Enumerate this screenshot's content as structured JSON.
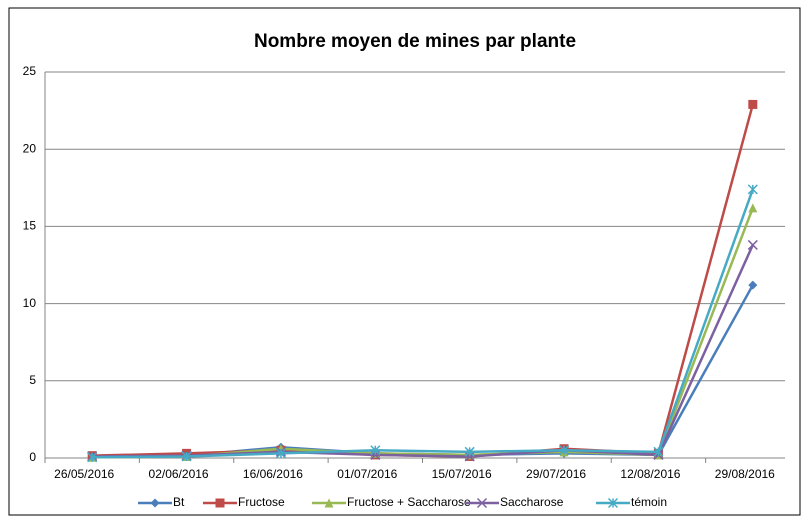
{
  "chart_data": {
    "type": "line",
    "title": "Nombre moyen de mines par plante",
    "categories": [
      "26/05/2016",
      "02/06/2016",
      "16/06/2016",
      "01/07/2016",
      "15/07/2016",
      "29/07/2016",
      "12/08/2016",
      "29/08/2016"
    ],
    "series": [
      {
        "name": "Bt",
        "color": "#4a7ebb",
        "marker": "diamond",
        "values": [
          0.1,
          0.15,
          0.7,
          0.3,
          0.2,
          0.3,
          0.2,
          11.2
        ]
      },
      {
        "name": "Fructose",
        "color": "#be4b48",
        "marker": "square",
        "values": [
          0.15,
          0.3,
          0.5,
          0.2,
          0.1,
          0.6,
          0.3,
          22.9
        ]
      },
      {
        "name": "Fructose + Saccharose",
        "color": "#98b954",
        "marker": "triangle",
        "values": [
          0.05,
          0.1,
          0.6,
          0.3,
          0.2,
          0.4,
          0.2,
          16.2
        ]
      },
      {
        "name": "Saccharose",
        "color": "#7d60a0",
        "marker": "x",
        "values": [
          0.1,
          0.15,
          0.4,
          0.2,
          0.1,
          0.5,
          0.2,
          13.8
        ]
      },
      {
        "name": "témoin",
        "color": "#46aac5",
        "marker": "star",
        "values": [
          0.05,
          0.1,
          0.3,
          0.5,
          0.4,
          0.5,
          0.4,
          17.4
        ]
      }
    ],
    "ylim": [
      0,
      25
    ],
    "yticks": [
      0,
      5,
      10,
      15,
      20,
      25
    ],
    "grid": true,
    "legend": "bottom"
  }
}
